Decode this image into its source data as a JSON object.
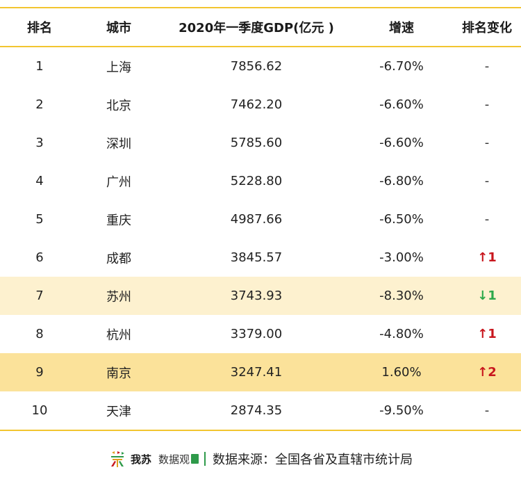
{
  "table": {
    "headers": {
      "rank": "排名",
      "city": "城市",
      "gdp": "2020年一季度GDP(亿元 )",
      "growth": "增速",
      "change": "排名变化"
    },
    "rows": [
      {
        "rank": "1",
        "city": "上海",
        "gdp": "7856.62",
        "growth": "-6.70%",
        "change": "-",
        "change_type": "none"
      },
      {
        "rank": "2",
        "city": "北京",
        "gdp": "7462.20",
        "growth": "-6.60%",
        "change": "-",
        "change_type": "none"
      },
      {
        "rank": "3",
        "city": "深圳",
        "gdp": "5785.60",
        "growth": "-6.60%",
        "change": "-",
        "change_type": "none"
      },
      {
        "rank": "4",
        "city": "广州",
        "gdp": "5228.80",
        "growth": "-6.80%",
        "change": "-",
        "change_type": "none"
      },
      {
        "rank": "5",
        "city": "重庆",
        "gdp": "4987.66",
        "growth": "-6.50%",
        "change": "-",
        "change_type": "none"
      },
      {
        "rank": "6",
        "city": "成都",
        "gdp": "3845.57",
        "growth": "-3.00%",
        "change": "↑1",
        "change_type": "up"
      },
      {
        "rank": "7",
        "city": "苏州",
        "gdp": "3743.93",
        "growth": "-8.30%",
        "change": "↓1",
        "change_type": "down",
        "highlight": "light"
      },
      {
        "rank": "8",
        "city": "杭州",
        "gdp": "3379.00",
        "growth": "-4.80%",
        "change": "↑1",
        "change_type": "up"
      },
      {
        "rank": "9",
        "city": "南京",
        "gdp": "3247.41",
        "growth": "1.60%",
        "change": "↑2",
        "change_type": "up",
        "highlight": "strong"
      },
      {
        "rank": "10",
        "city": "天津",
        "gdp": "2874.35",
        "growth": "-9.50%",
        "change": "-",
        "change_type": "none"
      }
    ]
  },
  "footer": {
    "logo_text": "我苏",
    "logo_sub": "数据观",
    "source": "数据来源：全国各省及直辖市统计局"
  },
  "colors": {
    "rule": "#f2c530",
    "row_highlight_light": "#fdf1cf",
    "row_highlight_strong": "#fbe29a",
    "up": "#c8161d",
    "down": "#2ca84a",
    "brand_green": "#2e9a4a"
  }
}
